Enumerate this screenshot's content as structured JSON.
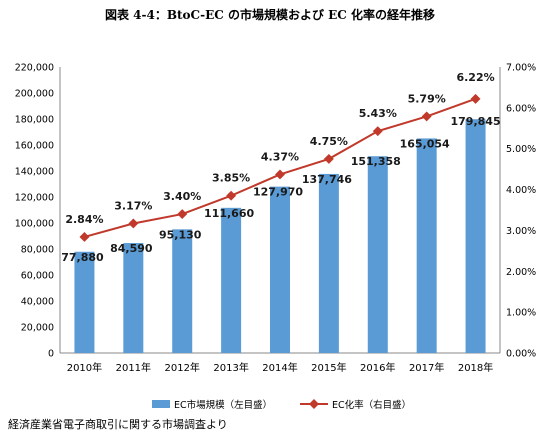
{
  "chart_data": {
    "type": "bar+line",
    "title": "図表 4-4：BtoC-EC の市場規模および EC 化率の経年推移",
    "categories": [
      "2010年",
      "2011年",
      "2012年",
      "2013年",
      "2014年",
      "2015年",
      "2016年",
      "2017年",
      "2018年"
    ],
    "series": [
      {
        "name": "EC市場規模（左目盛）",
        "type": "bar",
        "axis": "left",
        "color": "#5b9bd5",
        "values": [
          77880,
          84590,
          95130,
          111660,
          127970,
          137746,
          151358,
          165054,
          179845
        ],
        "labels": [
          "77,880",
          "84,590",
          "95,130",
          "111,660",
          "127,970",
          "137,746",
          "151,358",
          "165,054",
          "179,845"
        ]
      },
      {
        "name": "EC化率（右目盛）",
        "type": "line",
        "axis": "right",
        "color": "#c0392b",
        "values": [
          2.84,
          3.17,
          3.4,
          3.85,
          4.37,
          4.75,
          5.43,
          5.79,
          6.22
        ],
        "labels": [
          "2.84%",
          "3.17%",
          "3.40%",
          "3.85%",
          "4.37%",
          "4.75%",
          "5.43%",
          "5.79%",
          "6.22%"
        ]
      }
    ],
    "y_left": {
      "min": 0,
      "max": 220000,
      "step": 20000,
      "tick_labels": [
        "0",
        "20,000",
        "40,000",
        "60,000",
        "80,000",
        "100,000",
        "120,000",
        "140,000",
        "160,000",
        "180,000",
        "200,000",
        "220,000"
      ]
    },
    "y_right": {
      "min": 0,
      "max": 7,
      "step": 1,
      "tick_labels": [
        "0.00%",
        "1.00%",
        "2.00%",
        "3.00%",
        "4.00%",
        "5.00%",
        "6.00%",
        "7.00%"
      ]
    },
    "highlight_colors": {
      "bar_last": "#1f3a93",
      "line_last": "#c0392b"
    },
    "grid": false,
    "legend_position": "bottom"
  },
  "source_note": "経済産業省電子商取引に関する市場調査より"
}
